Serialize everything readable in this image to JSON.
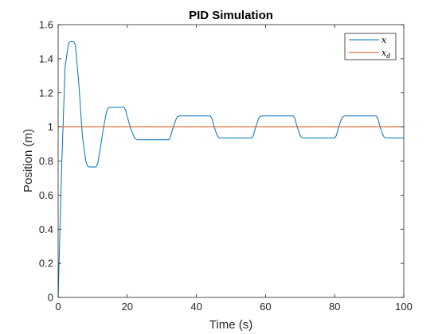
{
  "chart_data": {
    "type": "line",
    "title": "PID Simulation",
    "xlabel": "Time (s)",
    "ylabel": "Position (m)",
    "xlim": [
      0,
      100
    ],
    "ylim": [
      0,
      1.6
    ],
    "xticks": [
      0,
      20,
      40,
      60,
      80,
      100
    ],
    "xtick_labels": [
      "0",
      "20",
      "40",
      "60",
      "80",
      "100"
    ],
    "yticks": [
      0,
      0.2,
      0.4,
      0.6,
      0.8,
      1.0,
      1.2,
      1.4,
      1.6
    ],
    "ytick_labels": [
      "0",
      "0.2",
      "0.4",
      "0.6",
      "0.8",
      "1",
      "1.2",
      "1.4",
      "1.6"
    ],
    "grid": false,
    "legend_position": "top-right",
    "series": [
      {
        "name": "x",
        "color": "#0072BD",
        "x": [
          0,
          1,
          2,
          3,
          3.5,
          4.5,
          5,
          6,
          7,
          8,
          8.5,
          9,
          11,
          11.5,
          12,
          13,
          14,
          14.5,
          15,
          19,
          19.5,
          20,
          21,
          22,
          22.5,
          23,
          32,
          32.5,
          33,
          34,
          34.5,
          35,
          44,
          44.5,
          45,
          46,
          46.5,
          47,
          56,
          56.5,
          57,
          58,
          58.5,
          59,
          68,
          68.5,
          69,
          70,
          70.5,
          71,
          80,
          80.5,
          81,
          82,
          82.5,
          83,
          92,
          92.5,
          93,
          94,
          94.5,
          95,
          100
        ],
        "y": [
          0,
          0.75,
          1.35,
          1.49,
          1.5,
          1.5,
          1.48,
          1.25,
          0.95,
          0.8,
          0.77,
          0.765,
          0.765,
          0.79,
          0.85,
          0.98,
          1.09,
          1.11,
          1.115,
          1.115,
          1.1,
          1.06,
          0.99,
          0.94,
          0.928,
          0.925,
          0.925,
          0.94,
          0.98,
          1.04,
          1.06,
          1.065,
          1.065,
          1.05,
          1.01,
          0.95,
          0.937,
          0.935,
          0.935,
          0.95,
          0.99,
          1.05,
          1.062,
          1.065,
          1.065,
          1.05,
          1.01,
          0.95,
          0.937,
          0.935,
          0.935,
          0.95,
          0.99,
          1.05,
          1.062,
          1.065,
          1.065,
          1.05,
          1.01,
          0.95,
          0.937,
          0.935,
          0.935
        ]
      },
      {
        "name": "x_d",
        "color": "#D95319",
        "x": [
          0,
          100
        ],
        "y": [
          1,
          1
        ]
      }
    ]
  },
  "legend": {
    "items": [
      {
        "main": "x",
        "sub": ""
      },
      {
        "main": "x",
        "sub": "d"
      }
    ]
  }
}
